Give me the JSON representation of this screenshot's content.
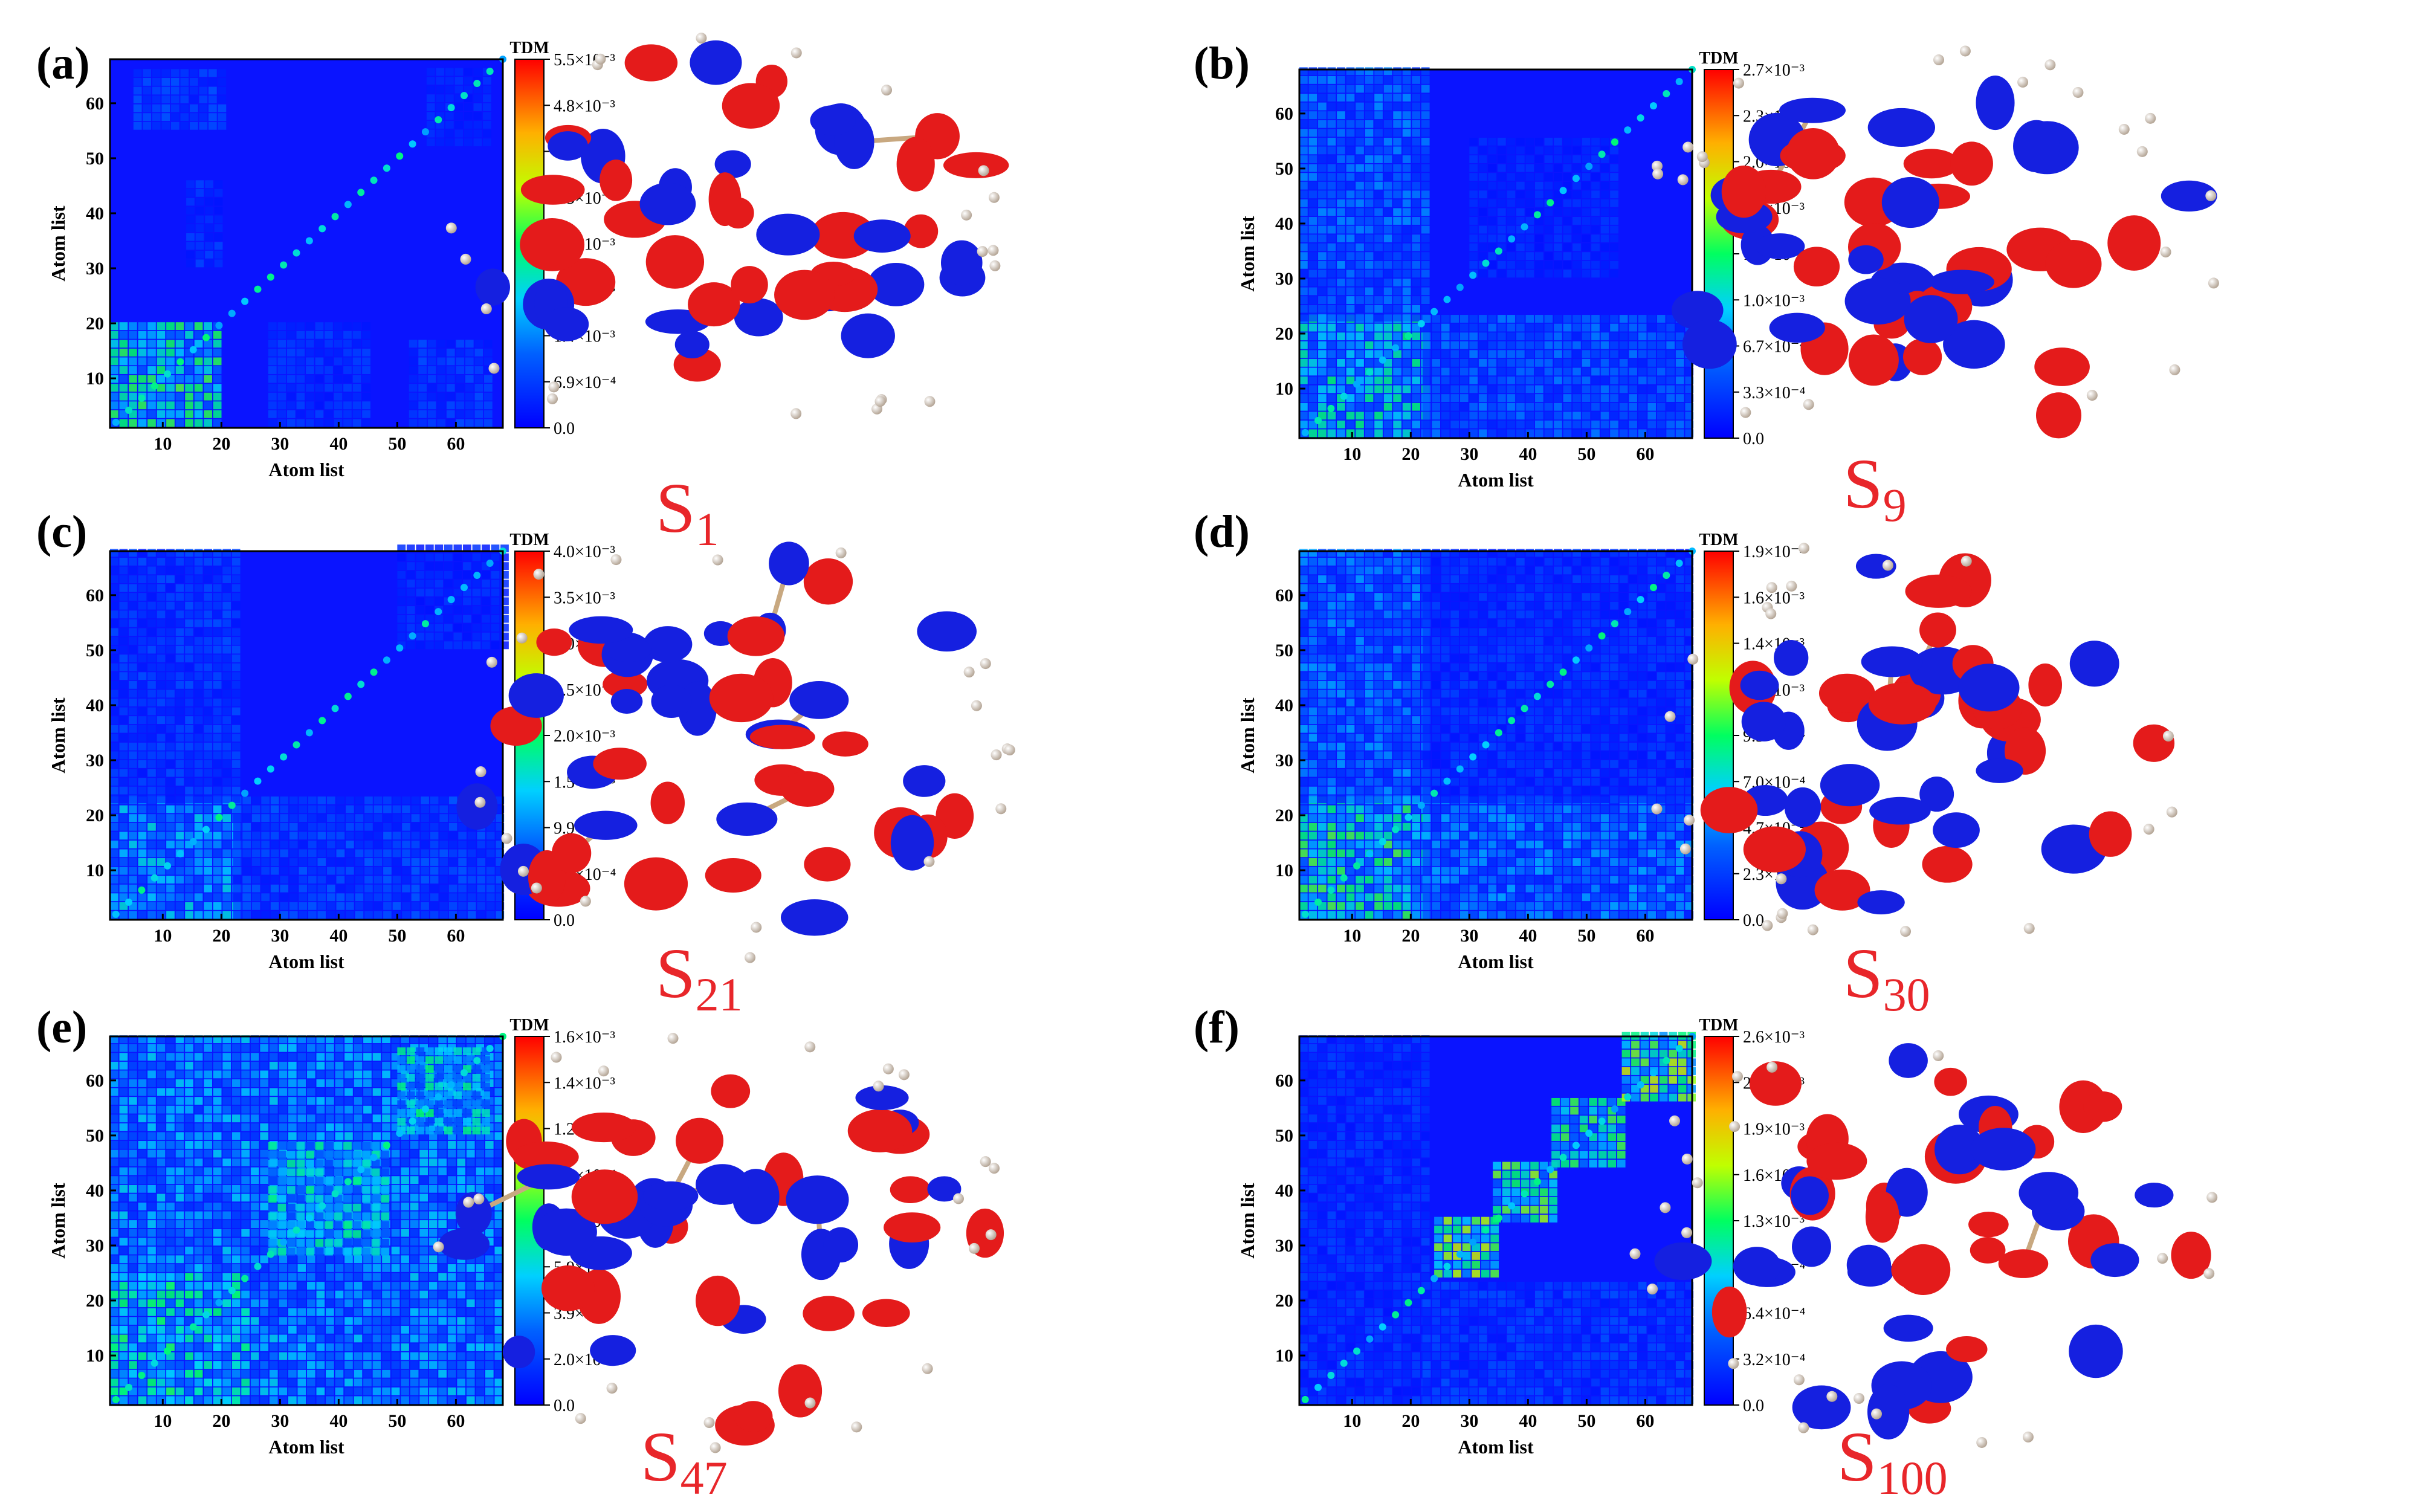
{
  "chart_data": [
    {
      "type": "heatmap",
      "panel_label": "(a)",
      "state": {
        "base": "S",
        "sub": "1"
      },
      "xlabel": "Atom list",
      "ylabel": "Atom list",
      "xticks": [
        "10",
        "20",
        "30",
        "40",
        "50",
        "60"
      ],
      "yticks": [
        "10",
        "20",
        "30",
        "40",
        "50",
        "60"
      ],
      "axis_range": [
        1,
        68
      ],
      "colorbar": {
        "title": "TDM",
        "ticks": [
          "5.5×10⁻³",
          "4.8×10⁻³",
          "4.1×10⁻³",
          "3.5×10⁻³",
          "2.8×10⁻³",
          "2.1×10⁻³",
          "1.4×10⁻³",
          "6.9×10⁻⁴",
          "0.0"
        ],
        "range": [
          0,
          0.0055
        ]
      },
      "hotspots": [
        {
          "x": [
            1,
            20
          ],
          "y": [
            1,
            20
          ],
          "level": 0.45
        },
        {
          "x": [
            5,
            20
          ],
          "y": [
            55,
            65
          ],
          "level": 0.15
        },
        {
          "x": [
            14,
            20
          ],
          "y": [
            30,
            45
          ],
          "level": 0.12
        },
        {
          "x": [
            28,
            45
          ],
          "y": [
            1,
            20
          ],
          "level": 0.12
        },
        {
          "x": [
            52,
            66
          ],
          "y": [
            1,
            16
          ],
          "level": 0.14
        },
        {
          "x": [
            55,
            66
          ],
          "y": [
            52,
            65
          ],
          "level": 0.1
        }
      ]
    },
    {
      "type": "heatmap",
      "panel_label": "(b)",
      "state": {
        "base": "S",
        "sub": "9"
      },
      "xlabel": "Atom list",
      "ylabel": "Atom list",
      "xticks": [
        "10",
        "20",
        "30",
        "40",
        "50",
        "60"
      ],
      "yticks": [
        "10",
        "20",
        "30",
        "40",
        "50",
        "60"
      ],
      "axis_range": [
        1,
        68
      ],
      "colorbar": {
        "title": "TDM",
        "ticks": [
          "2.7×10⁻³",
          "2.3×10⁻³",
          "2.0×10⁻³",
          "1.7×10⁻³",
          "1.3×10⁻³",
          "1.0×10⁻³",
          "6.7×10⁻⁴",
          "3.3×10⁻⁴",
          "0.0"
        ],
        "range": [
          0,
          0.0027
        ]
      },
      "hotspots": [
        {
          "x": [
            1,
            22
          ],
          "y": [
            1,
            22
          ],
          "level": 0.4
        },
        {
          "x": [
            1,
            22
          ],
          "y": [
            22,
            68
          ],
          "level": 0.22
        },
        {
          "x": [
            22,
            68
          ],
          "y": [
            1,
            22
          ],
          "level": 0.2
        },
        {
          "x": [
            30,
            55
          ],
          "y": [
            30,
            55
          ],
          "level": 0.1
        }
      ]
    },
    {
      "type": "heatmap",
      "panel_label": "(c)",
      "state": {
        "base": "S",
        "sub": "21"
      },
      "xlabel": "Atom list",
      "ylabel": "Atom list",
      "xticks": [
        "10",
        "20",
        "30",
        "40",
        "50",
        "60"
      ],
      "yticks": [
        "10",
        "20",
        "30",
        "40",
        "50",
        "60"
      ],
      "axis_range": [
        1,
        68
      ],
      "colorbar": {
        "title": "TDM",
        "ticks": [
          "4.0×10⁻³",
          "3.5×10⁻³",
          "3.0×10⁻³",
          "2.5×10⁻³",
          "2.0×10⁻³",
          "1.5×10⁻³",
          "9.9×10⁻⁴",
          "5.0×10⁻⁴",
          "0.0"
        ],
        "range": [
          0,
          0.004
        ]
      },
      "hotspots": [
        {
          "x": [
            1,
            22
          ],
          "y": [
            1,
            22
          ],
          "level": 0.32
        },
        {
          "x": [
            22,
            68
          ],
          "y": [
            1,
            22
          ],
          "level": 0.16
        },
        {
          "x": [
            1,
            22
          ],
          "y": [
            22,
            68
          ],
          "level": 0.14
        },
        {
          "x": [
            50,
            68
          ],
          "y": [
            50,
            68
          ],
          "level": 0.1
        }
      ]
    },
    {
      "type": "heatmap",
      "panel_label": "(d)",
      "state": {
        "base": "S",
        "sub": "30"
      },
      "xlabel": "Atom list",
      "ylabel": "Atom list",
      "xticks": [
        "10",
        "20",
        "30",
        "40",
        "50",
        "60"
      ],
      "yticks": [
        "10",
        "20",
        "30",
        "40",
        "50",
        "60"
      ],
      "axis_range": [
        1,
        68
      ],
      "colorbar": {
        "title": "TDM",
        "ticks": [
          "1.9×10⁻³",
          "1.6×10⁻³",
          "1.4×10⁻³",
          "1.2×10⁻³",
          "9.3×10⁻⁴",
          "7.0×10⁻⁴",
          "4.7×10⁻⁴",
          "2.3×10⁻⁴",
          "0.0"
        ],
        "range": [
          0,
          0.0019
        ]
      },
      "hotspots": [
        {
          "x": [
            1,
            22
          ],
          "y": [
            1,
            22
          ],
          "level": 0.45
        },
        {
          "x": [
            22,
            68
          ],
          "y": [
            1,
            22
          ],
          "level": 0.25
        },
        {
          "x": [
            1,
            22
          ],
          "y": [
            22,
            68
          ],
          "level": 0.24
        },
        {
          "x": [
            22,
            68
          ],
          "y": [
            22,
            68
          ],
          "level": 0.12
        }
      ]
    },
    {
      "type": "heatmap",
      "panel_label": "(e)",
      "state": {
        "base": "S",
        "sub": "47"
      },
      "xlabel": "Atom list",
      "ylabel": "Atom list",
      "xticks": [
        "10",
        "20",
        "30",
        "40",
        "50",
        "60"
      ],
      "yticks": [
        "10",
        "20",
        "30",
        "40",
        "50",
        "60"
      ],
      "axis_range": [
        1,
        68
      ],
      "colorbar": {
        "title": "TDM",
        "ticks": [
          "1.6×10⁻³",
          "1.4×10⁻³",
          "1.2×10⁻³",
          "9.8×10⁻⁴",
          "7.8×10⁻⁴",
          "5.9×10⁻⁴",
          "3.9×10⁻⁴",
          "2.0×10⁻⁴",
          "0.0"
        ],
        "range": [
          0,
          0.0016
        ]
      },
      "hotspots": [
        {
          "x": [
            1,
            68
          ],
          "y": [
            1,
            68
          ],
          "level": 0.3
        },
        {
          "x": [
            1,
            25
          ],
          "y": [
            1,
            25
          ],
          "level": 0.42
        },
        {
          "x": [
            28,
            48
          ],
          "y": [
            28,
            48
          ],
          "level": 0.38
        },
        {
          "x": [
            50,
            66
          ],
          "y": [
            50,
            66
          ],
          "level": 0.4
        }
      ]
    },
    {
      "type": "heatmap",
      "panel_label": "(f)",
      "state": {
        "base": "S",
        "sub": "100"
      },
      "xlabel": "Atom list",
      "ylabel": "Atom list",
      "xticks": [
        "10",
        "20",
        "30",
        "40",
        "50",
        "60"
      ],
      "yticks": [
        "10",
        "20",
        "30",
        "40",
        "50",
        "60"
      ],
      "axis_range": [
        1,
        68
      ],
      "colorbar": {
        "title": "TDM",
        "ticks": [
          "2.6×10⁻³",
          "2.2×10⁻³",
          "1.9×10⁻³",
          "1.6×10⁻³",
          "1.3×10⁻³",
          "9.6×10⁻⁴",
          "6.4×10⁻⁴",
          "3.2×10⁻⁴",
          "0.0"
        ],
        "range": [
          0,
          0.0026
        ]
      },
      "hotspots": [
        {
          "x": [
            24,
            34
          ],
          "y": [
            24,
            34
          ],
          "level": 0.55
        },
        {
          "x": [
            34,
            44
          ],
          "y": [
            34,
            44
          ],
          "level": 0.5
        },
        {
          "x": [
            44,
            56
          ],
          "y": [
            44,
            56
          ],
          "level": 0.45
        },
        {
          "x": [
            56,
            68
          ],
          "y": [
            56,
            68
          ],
          "level": 0.55
        },
        {
          "x": [
            1,
            22
          ],
          "y": [
            1,
            68
          ],
          "level": 0.12
        },
        {
          "x": [
            22,
            68
          ],
          "y": [
            1,
            22
          ],
          "level": 0.14
        }
      ]
    }
  ]
}
